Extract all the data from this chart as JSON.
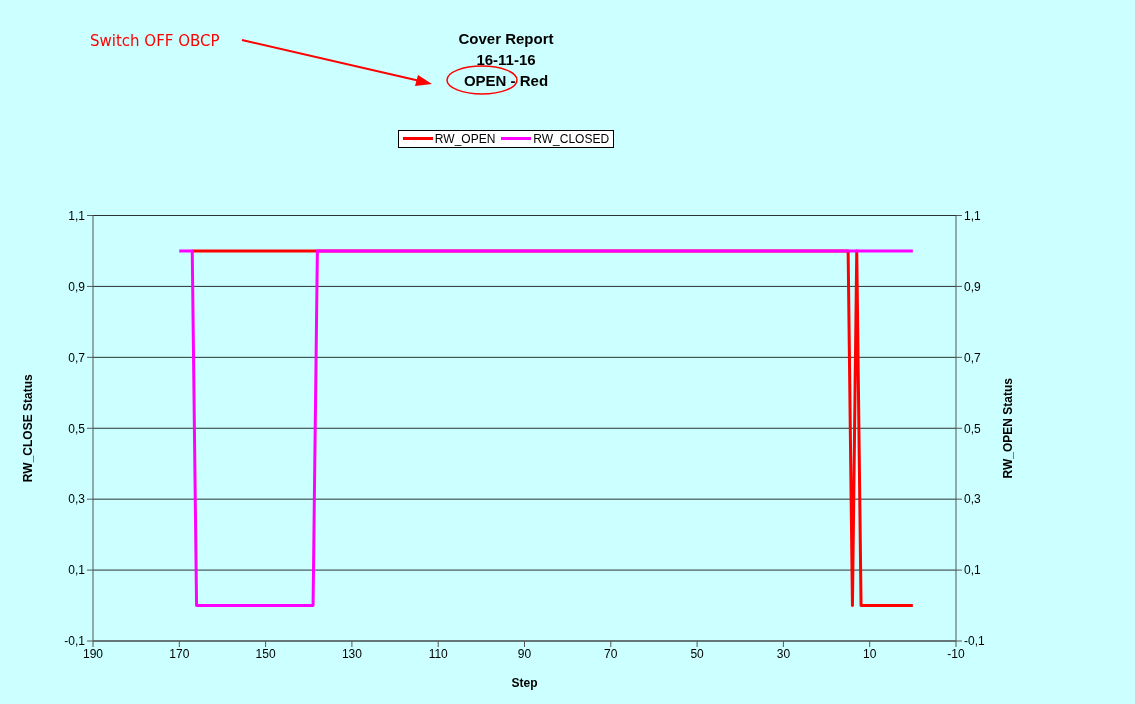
{
  "chart_data": {
    "type": "line",
    "title": "Cover Report\n16-11-16\nOPEN - Red",
    "xlabel": "Step",
    "ylabel": "RW_CLOSE Status",
    "y2label": "RW_OPEN Status",
    "annotations": [
      "Switch OFF OBCP"
    ],
    "series": [
      {
        "name": "RW_OPEN",
        "color": "#ff0000",
        "x": [
          167,
          15,
          14,
          13,
          12,
          0
        ],
        "values": [
          1,
          1,
          0,
          1,
          0,
          0
        ]
      },
      {
        "name": "RW_CLOSED",
        "color": "#ff00ff",
        "x": [
          170,
          167,
          166,
          139,
          138,
          0
        ],
        "values": [
          1,
          1,
          0,
          0,
          1,
          1
        ]
      }
    ],
    "xlim": [
      190,
      -10
    ],
    "xticks": [
      190,
      170,
      150,
      130,
      110,
      90,
      70,
      50,
      30,
      10,
      -10
    ],
    "ylim": [
      -0.1,
      1.1
    ],
    "yticks": [
      {
        "value": -0.1,
        "label": "-0,1"
      },
      {
        "value": 0.1,
        "label": "0,1"
      },
      {
        "value": 0.3,
        "label": "0,3"
      },
      {
        "value": 0.5,
        "label": "0,5"
      },
      {
        "value": 0.7,
        "label": "0,7"
      },
      {
        "value": 0.9,
        "label": "0,9"
      },
      {
        "value": 1.1,
        "label": "1,1"
      }
    ],
    "y2lim": [
      -0.1,
      1.1
    ],
    "y2ticks": [
      {
        "value": -0.1,
        "label": "-0,1"
      },
      {
        "value": 0.1,
        "label": "0,1"
      },
      {
        "value": 0.3,
        "label": "0,3"
      },
      {
        "value": 0.5,
        "label": "0,5"
      },
      {
        "value": 0.7,
        "label": "0,7"
      },
      {
        "value": 0.9,
        "label": "0,9"
      },
      {
        "value": 1.1,
        "label": "1,1"
      }
    ],
    "grid": "y",
    "legend": "top",
    "marker": "none",
    "line_style": "solid"
  }
}
